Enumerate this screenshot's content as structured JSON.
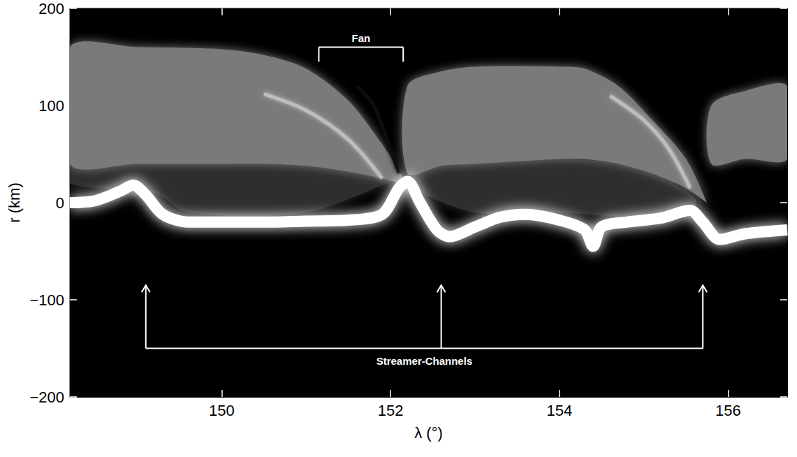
{
  "chart_data": {
    "type": "line",
    "x_label": "λ (°)",
    "y_label": "r (km)",
    "xlim": [
      148.2,
      156.7
    ],
    "xticks": [
      150,
      152,
      154,
      156
    ],
    "ylim": [
      -200,
      200
    ],
    "yticks": [
      {
        "value": -200,
        "label": "−200"
      },
      {
        "value": -100,
        "label": "−100"
      },
      0,
      100,
      200
    ],
    "series": [
      {
        "type": "band",
        "color": "#2e2e2e",
        "x": [
          148.2,
          149.2,
          149.6,
          151,
          152.1
        ],
        "lower": [
          20,
          10,
          -10,
          -10,
          25
        ],
        "upper": [
          45,
          45,
          45,
          40,
          25
        ]
      },
      {
        "type": "band",
        "color": "#2e2e2e",
        "x": [
          152.3,
          153,
          154,
          155,
          155.6
        ],
        "lower": [
          15,
          -10,
          -10,
          -15,
          -5
        ],
        "upper": [
          35,
          40,
          45,
          35,
          5
        ]
      },
      {
        "type": "band",
        "color": "#7a7a7a",
        "x": [
          148.2,
          149,
          150,
          150.5,
          151,
          151.5,
          151.9,
          152.15
        ],
        "lower": [
          40,
          40,
          40,
          40,
          38,
          32,
          25,
          20
        ],
        "upper": [
          160,
          160,
          158,
          152,
          138,
          105,
          60,
          25
        ]
      },
      {
        "type": "band",
        "color": "#7a7a7a",
        "x": [
          152.2,
          152.6,
          153,
          154,
          154.3,
          154.7,
          155.1,
          155.5,
          155.75
        ],
        "lower": [
          30,
          38,
          40,
          45,
          45,
          40,
          30,
          15,
          0
        ],
        "upper": [
          120,
          135,
          140,
          140,
          138,
          120,
          85,
          45,
          0
        ]
      },
      {
        "type": "band",
        "color": "#7a7a7a",
        "x": [
          155.8,
          156.2,
          156.7
        ],
        "lower": [
          40,
          45,
          45
        ],
        "upper": [
          100,
          115,
          120
        ]
      },
      {
        "type": "line",
        "color": "#bdbdbd",
        "x": [
          150.5,
          151,
          151.5,
          151.9
        ],
        "values": [
          112,
          95,
          65,
          25
        ]
      },
      {
        "type": "line",
        "color": "#111111",
        "x": [
          151.6,
          151.8,
          152.0,
          152.1
        ],
        "values": [
          120,
          100,
          55,
          30
        ]
      },
      {
        "type": "line",
        "color": "#bdbdbd",
        "x": [
          154.6,
          155,
          155.3,
          155.55
        ],
        "values": [
          110,
          85,
          55,
          15
        ]
      },
      {
        "type": "line",
        "color": "#ffffff",
        "x": [
          148.2,
          148.5,
          148.8,
          148.95,
          149.1,
          149.3,
          149.6,
          150,
          150.5,
          151,
          151.5,
          151.9,
          152.1,
          152.2,
          152.35,
          152.55,
          152.7,
          153,
          153.3,
          153.6,
          154,
          154.3,
          154.4,
          154.5,
          154.8,
          155.2,
          155.55,
          155.7,
          155.9,
          156.2,
          156.7
        ],
        "values": [
          0,
          2,
          12,
          18,
          8,
          -12,
          -20,
          -20,
          -20,
          -19,
          -18,
          -12,
          15,
          22,
          0,
          -28,
          -35,
          -25,
          -15,
          -12,
          -18,
          -28,
          -45,
          -25,
          -20,
          -16,
          -8,
          -20,
          -38,
          -32,
          -28
        ]
      }
    ],
    "annotations": [
      {
        "text": "Fan",
        "x": [
          151.15,
          152.15
        ],
        "y": 160,
        "tip": 145
      },
      {
        "text": "Streamer-Channels",
        "x": [
          149.1,
          152.6,
          155.7
        ],
        "y": -150,
        "tip": -85
      }
    ]
  }
}
